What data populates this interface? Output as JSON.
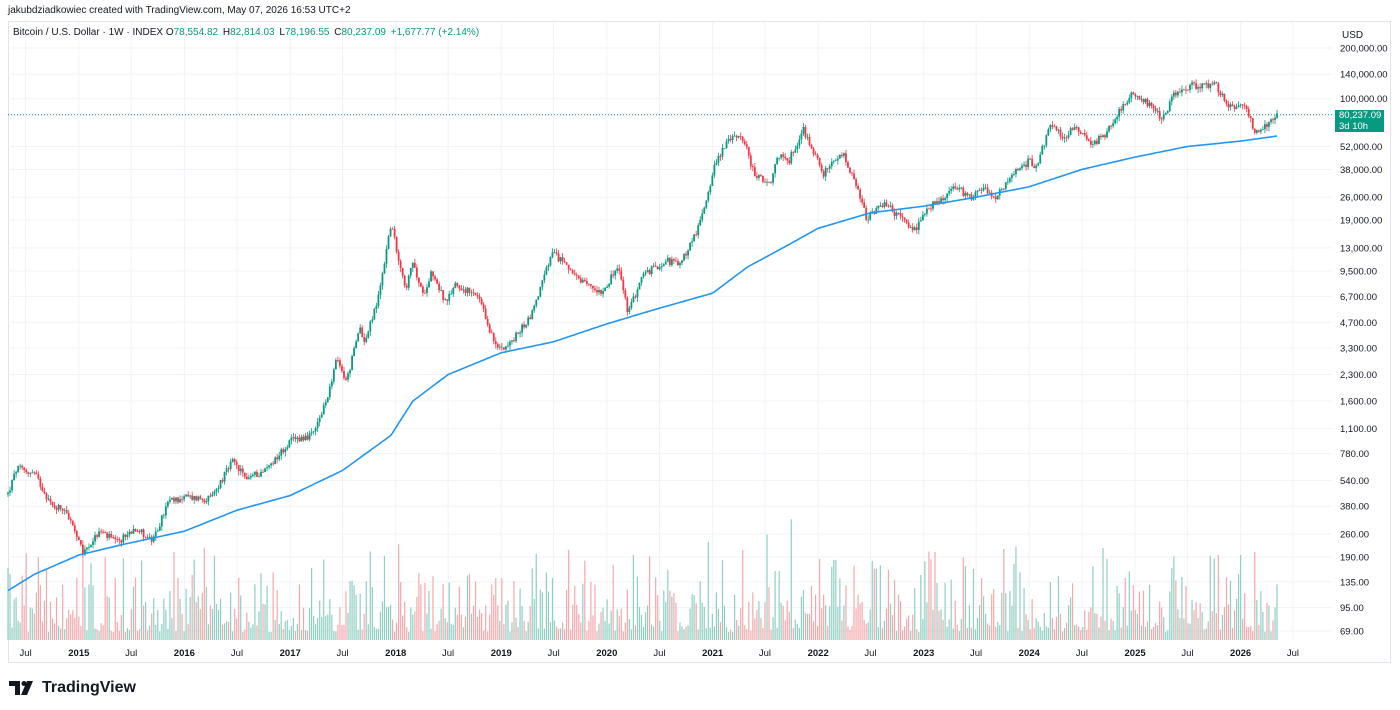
{
  "header": {
    "credit": "jakubdziadkowiec created with TradingView.com, May 07, 2026 16:53 UTC+2"
  },
  "legend": {
    "symbol": "Bitcoin / U.S. Dollar · 1W · INDEX",
    "open_label": "O",
    "open": "78,554.82",
    "high_label": "H",
    "high": "82,814.03",
    "low_label": "L",
    "low": "78,196.55",
    "close_label": "C",
    "close": "80,237.09",
    "change": "+1,677.77 (+2.14%)"
  },
  "price_tag": {
    "price": "80,237.09",
    "countdown": "3d 10h"
  },
  "brand": {
    "name": "TradingView"
  },
  "colors": {
    "up": "#089981",
    "down": "#f23645",
    "ma": "#2196f3",
    "volume_up": "#8fcfc2",
    "volume_down": "#f5a8ab"
  },
  "chart_data": {
    "type": "candlestick",
    "scale": "log",
    "currency": "USD",
    "interval": "1W",
    "grid": true,
    "y_ticks": [
      {
        "value": 200000,
        "label": "200,000.00"
      },
      {
        "value": 140000,
        "label": "140,000.00"
      },
      {
        "value": 100000,
        "label": "100,000.00"
      },
      {
        "value": 52000,
        "label": "52,000.00"
      },
      {
        "value": 38000,
        "label": "38,000.00"
      },
      {
        "value": 26000,
        "label": "26,000.00"
      },
      {
        "value": 19000,
        "label": "19,000.00"
      },
      {
        "value": 13000,
        "label": "13,000.00"
      },
      {
        "value": 9500,
        "label": "9,500.00"
      },
      {
        "value": 6700,
        "label": "6,700.00"
      },
      {
        "value": 4700,
        "label": "4,700.00"
      },
      {
        "value": 3300,
        "label": "3,300.00"
      },
      {
        "value": 2300,
        "label": "2,300.00"
      },
      {
        "value": 1600,
        "label": "1,600.00"
      },
      {
        "value": 1100,
        "label": "1,100.00"
      },
      {
        "value": 780,
        "label": "780.00"
      },
      {
        "value": 540,
        "label": "540.00"
      },
      {
        "value": 380,
        "label": "380.00"
      },
      {
        "value": 260,
        "label": "260.00"
      },
      {
        "value": 190,
        "label": "190.00"
      },
      {
        "value": 135,
        "label": "135.00"
      },
      {
        "value": 95,
        "label": "95.00"
      },
      {
        "value": 69,
        "label": "69.00"
      }
    ],
    "x_ticks": [
      {
        "date": "2014-07-01",
        "label": "Jul",
        "major": false
      },
      {
        "date": "2015-01-01",
        "label": "2015",
        "major": true
      },
      {
        "date": "2015-07-01",
        "label": "Jul",
        "major": false
      },
      {
        "date": "2016-01-01",
        "label": "2016",
        "major": true
      },
      {
        "date": "2016-07-01",
        "label": "Jul",
        "major": false
      },
      {
        "date": "2017-01-01",
        "label": "2017",
        "major": true
      },
      {
        "date": "2017-07-01",
        "label": "Jul",
        "major": false
      },
      {
        "date": "2018-01-01",
        "label": "2018",
        "major": true
      },
      {
        "date": "2018-07-01",
        "label": "Jul",
        "major": false
      },
      {
        "date": "2019-01-01",
        "label": "2019",
        "major": true
      },
      {
        "date": "2019-07-01",
        "label": "Jul",
        "major": false
      },
      {
        "date": "2020-01-01",
        "label": "2020",
        "major": true
      },
      {
        "date": "2020-07-01",
        "label": "Jul",
        "major": false
      },
      {
        "date": "2021-01-01",
        "label": "2021",
        "major": true
      },
      {
        "date": "2021-07-01",
        "label": "Jul",
        "major": false
      },
      {
        "date": "2022-01-01",
        "label": "2022",
        "major": true
      },
      {
        "date": "2022-07-01",
        "label": "Jul",
        "major": false
      },
      {
        "date": "2023-01-01",
        "label": "2023",
        "major": true
      },
      {
        "date": "2023-07-01",
        "label": "Jul",
        "major": false
      },
      {
        "date": "2024-01-01",
        "label": "2024",
        "major": true
      },
      {
        "date": "2024-07-01",
        "label": "Jul",
        "major": false
      },
      {
        "date": "2025-01-01",
        "label": "2025",
        "major": true
      },
      {
        "date": "2025-07-01",
        "label": "Jul",
        "major": false
      },
      {
        "date": "2026-01-01",
        "label": "2026",
        "major": true
      },
      {
        "date": "2026-07-01",
        "label": "Jul",
        "major": false
      }
    ],
    "price_anchors": [
      [
        "2014-05-01",
        450
      ],
      [
        "2014-06-01",
        640
      ],
      [
        "2014-08-01",
        590
      ],
      [
        "2014-10-01",
        380
      ],
      [
        "2014-11-15",
        370
      ],
      [
        "2015-01-15",
        200
      ],
      [
        "2015-03-15",
        270
      ],
      [
        "2015-05-15",
        230
      ],
      [
        "2015-07-15",
        285
      ],
      [
        "2015-09-15",
        235
      ],
      [
        "2015-11-05",
        400
      ],
      [
        "2016-01-01",
        430
      ],
      [
        "2016-04-01",
        420
      ],
      [
        "2016-06-15",
        700
      ],
      [
        "2016-08-01",
        560
      ],
      [
        "2016-10-01",
        610
      ],
      [
        "2016-12-15",
        850
      ],
      [
        "2017-01-10",
        950
      ],
      [
        "2017-03-20",
        1000
      ],
      [
        "2017-05-01",
        1500
      ],
      [
        "2017-06-10",
        2800
      ],
      [
        "2017-07-15",
        2100
      ],
      [
        "2017-09-01",
        4500
      ],
      [
        "2017-09-15",
        3500
      ],
      [
        "2017-11-01",
        6500
      ],
      [
        "2017-12-15",
        18000
      ],
      [
        "2018-02-05",
        7500
      ],
      [
        "2018-03-01",
        10500
      ],
      [
        "2018-04-05",
        6800
      ],
      [
        "2018-05-05",
        9500
      ],
      [
        "2018-06-25",
        6000
      ],
      [
        "2018-07-25",
        8000
      ],
      [
        "2018-10-15",
        6500
      ],
      [
        "2018-12-15",
        3300
      ],
      [
        "2019-02-01",
        3500
      ],
      [
        "2019-04-15",
        5200
      ],
      [
        "2019-06-25",
        12000
      ],
      [
        "2019-08-15",
        10500
      ],
      [
        "2019-09-25",
        8200
      ],
      [
        "2019-12-15",
        7200
      ],
      [
        "2020-02-10",
        10000
      ],
      [
        "2020-03-15",
        5300
      ],
      [
        "2020-05-01",
        8800
      ],
      [
        "2020-07-25",
        11000
      ],
      [
        "2020-09-10",
        10300
      ],
      [
        "2020-11-15",
        17500
      ],
      [
        "2021-01-08",
        40000
      ],
      [
        "2021-02-15",
        55000
      ],
      [
        "2021-04-10",
        62000
      ],
      [
        "2021-05-25",
        36000
      ],
      [
        "2021-07-20",
        30000
      ],
      [
        "2021-08-15",
        47000
      ],
      [
        "2021-09-20",
        42000
      ],
      [
        "2021-11-10",
        66000
      ],
      [
        "2022-01-20",
        36000
      ],
      [
        "2022-03-28",
        47000
      ],
      [
        "2022-05-15",
        29000
      ],
      [
        "2022-06-20",
        19000
      ],
      [
        "2022-08-15",
        24000
      ],
      [
        "2022-10-15",
        19500
      ],
      [
        "2022-12-01",
        16500
      ],
      [
        "2023-01-25",
        23000
      ],
      [
        "2023-03-15",
        26000
      ],
      [
        "2023-04-15",
        30000
      ],
      [
        "2023-06-15",
        26000
      ],
      [
        "2023-07-15",
        30000
      ],
      [
        "2023-09-10",
        26000
      ],
      [
        "2023-11-15",
        37000
      ],
      [
        "2023-12-31",
        42500
      ],
      [
        "2024-01-25",
        40000
      ],
      [
        "2024-03-15",
        70000
      ],
      [
        "2024-05-01",
        58000
      ],
      [
        "2024-06-05",
        70000
      ],
      [
        "2024-08-05",
        54000
      ],
      [
        "2024-09-15",
        60000
      ],
      [
        "2024-11-15",
        90000
      ],
      [
        "2024-12-15",
        104000
      ],
      [
        "2025-01-20",
        103000
      ],
      [
        "2025-03-15",
        82000
      ],
      [
        "2025-04-08",
        77000
      ],
      [
        "2025-05-20",
        108000
      ],
      [
        "2025-07-14",
        120000
      ],
      [
        "2025-08-15",
        118000
      ],
      [
        "2025-10-06",
        123000
      ],
      [
        "2025-11-15",
        90000
      ],
      [
        "2026-01-15",
        93000
      ],
      [
        "2026-02-20",
        64000
      ],
      [
        "2026-03-25",
        68000
      ],
      [
        "2026-05-07",
        80237
      ]
    ],
    "moving_average": {
      "description": "long-term moving average (blue line)",
      "anchors": [
        [
          "2014-05-01",
          120
        ],
        [
          "2014-08-01",
          150
        ],
        [
          "2015-01-01",
          195
        ],
        [
          "2015-06-01",
          225
        ],
        [
          "2016-01-01",
          270
        ],
        [
          "2016-07-01",
          360
        ],
        [
          "2017-01-01",
          440
        ],
        [
          "2017-07-01",
          620
        ],
        [
          "2017-12-15",
          1000
        ],
        [
          "2018-03-01",
          1600
        ],
        [
          "2018-07-01",
          2300
        ],
        [
          "2019-01-01",
          3100
        ],
        [
          "2019-07-01",
          3600
        ],
        [
          "2020-01-01",
          4600
        ],
        [
          "2020-07-01",
          5700
        ],
        [
          "2021-01-01",
          7000
        ],
        [
          "2021-05-01",
          10000
        ],
        [
          "2021-09-01",
          13000
        ],
        [
          "2022-01-01",
          17000
        ],
        [
          "2022-07-01",
          21000
        ],
        [
          "2023-01-01",
          23000
        ],
        [
          "2023-07-01",
          26000
        ],
        [
          "2024-01-01",
          30000
        ],
        [
          "2024-07-01",
          38000
        ],
        [
          "2025-01-01",
          45000
        ],
        [
          "2025-07-01",
          52000
        ],
        [
          "2026-01-01",
          56000
        ],
        [
          "2026-05-07",
          60000
        ]
      ]
    },
    "current_price": 80237.09,
    "start_date": "2014-05-01",
    "end_date": "2026-05-07",
    "volume": {
      "description": "weekly volume bars along the bottom; green on up weeks, red on down weeks"
    }
  }
}
